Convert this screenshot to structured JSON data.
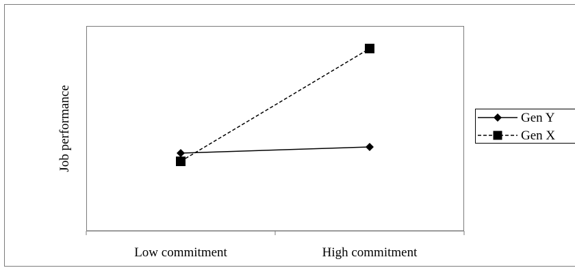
{
  "chart_data": {
    "type": "line",
    "categories": [
      "Low commitment",
      "High commitment"
    ],
    "xlabel": "",
    "ylabel": "Job performance",
    "ylim": [
      0,
      10
    ],
    "grid": false,
    "legend": "right",
    "series": [
      {
        "name": "Gen Y",
        "values": [
          3.8,
          4.1
        ],
        "marker": "diamond",
        "line_style": "solid",
        "color": "#000000"
      },
      {
        "name": "Gen X",
        "values": [
          3.4,
          8.9
        ],
        "marker": "square",
        "line_style": "dashed",
        "color": "#000000"
      }
    ]
  }
}
